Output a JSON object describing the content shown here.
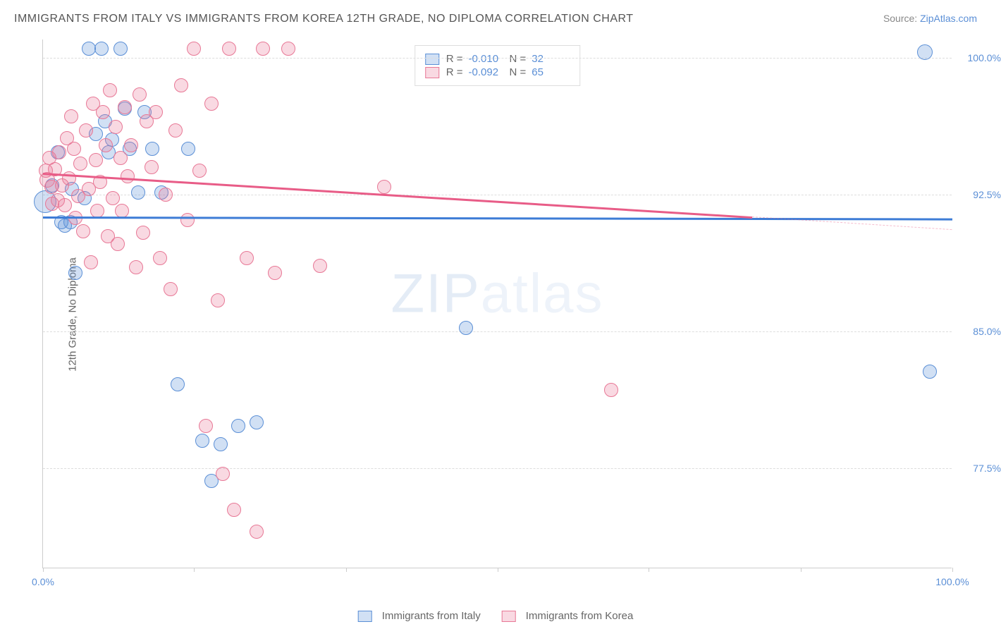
{
  "title": "IMMIGRANTS FROM ITALY VS IMMIGRANTS FROM KOREA 12TH GRADE, NO DIPLOMA CORRELATION CHART",
  "source_prefix": "Source: ",
  "source_name": "ZipAtlas.com",
  "ylabel": "12th Grade, No Diploma",
  "watermark_bold": "ZIP",
  "watermark_thin": "atlas",
  "chart": {
    "type": "scatter",
    "xlim": [
      0,
      100
    ],
    "ylim": [
      72,
      101
    ],
    "xtick_positions": [
      0,
      16.6,
      33.3,
      50,
      66.6,
      83.3,
      100
    ],
    "xtick_labels": [
      "0.0%",
      "",
      "",
      "",
      "",
      "",
      "100.0%"
    ],
    "ytick_positions": [
      77.5,
      85.0,
      92.5,
      100.0
    ],
    "ytick_labels": [
      "77.5%",
      "85.0%",
      "92.5%",
      "100.0%"
    ],
    "grid_color": "#dddddd",
    "background_color": "#ffffff",
    "axis_color": "#cccccc",
    "tick_label_color": "#5b8fd6",
    "axis_label_color": "#666666",
    "label_fontsize": 15,
    "tick_fontsize": 14
  },
  "series": [
    {
      "name": "Immigrants from Italy",
      "fill_color": "rgba(91,143,214,0.28)",
      "stroke_color": "#5b8fd6",
      "marker_radius": 10,
      "trend": {
        "x1": 0,
        "y1": 91.3,
        "x2": 100,
        "y2": 91.2,
        "dash_from_x": 100,
        "color": "#3d7cd6",
        "width": 2.5
      },
      "R": "-0.010",
      "N": "32",
      "points": [
        [
          0.2,
          92.1,
          16
        ],
        [
          1.0,
          93.0,
          10
        ],
        [
          1.6,
          94.8,
          10
        ],
        [
          2.0,
          91.0,
          10
        ],
        [
          2.4,
          90.8,
          10
        ],
        [
          3.2,
          92.8,
          10
        ],
        [
          3.0,
          91.0,
          10
        ],
        [
          3.6,
          88.2,
          10
        ],
        [
          4.6,
          92.3,
          10
        ],
        [
          5.0,
          100.5,
          10
        ],
        [
          5.8,
          95.8,
          10
        ],
        [
          6.4,
          100.5,
          10
        ],
        [
          6.8,
          96.5,
          10
        ],
        [
          7.2,
          94.8,
          10
        ],
        [
          7.6,
          95.5,
          10
        ],
        [
          8.5,
          100.5,
          10
        ],
        [
          9.0,
          97.2,
          10
        ],
        [
          9.5,
          95.0,
          10
        ],
        [
          10.5,
          92.6,
          10
        ],
        [
          11.2,
          97.0,
          10
        ],
        [
          12.0,
          95.0,
          10
        ],
        [
          13.0,
          92.6,
          10
        ],
        [
          14.8,
          82.1,
          10
        ],
        [
          16.0,
          95.0,
          10
        ],
        [
          17.5,
          79.0,
          10
        ],
        [
          18.5,
          76.8,
          10
        ],
        [
          19.5,
          78.8,
          10
        ],
        [
          21.5,
          79.8,
          10
        ],
        [
          23.5,
          80.0,
          10
        ],
        [
          46.5,
          85.2,
          10
        ],
        [
          97.0,
          100.3,
          11
        ],
        [
          97.5,
          82.8,
          10
        ]
      ]
    },
    {
      "name": "Immigrants from Korea",
      "fill_color": "rgba(232,120,150,0.28)",
      "stroke_color": "#e87896",
      "marker_radius": 10,
      "trend": {
        "x1": 0,
        "y1": 93.7,
        "x2": 78,
        "y2": 91.3,
        "dash_from_x": 78,
        "dash_x2": 100,
        "dash_y2": 90.6,
        "color": "#e85c87",
        "width": 2.5
      },
      "R": "-0.092",
      "N": "65",
      "points": [
        [
          0.3,
          93.8,
          10
        ],
        [
          0.5,
          93.3,
          11
        ],
        [
          0.7,
          94.5,
          10
        ],
        [
          0.9,
          92.9,
          10
        ],
        [
          1.0,
          92.0,
          10
        ],
        [
          1.3,
          93.9,
          10
        ],
        [
          1.6,
          92.2,
          10
        ],
        [
          1.8,
          94.8,
          10
        ],
        [
          2.1,
          93.0,
          10
        ],
        [
          2.4,
          91.9,
          10
        ],
        [
          2.6,
          95.6,
          10
        ],
        [
          2.9,
          93.4,
          10
        ],
        [
          3.1,
          96.8,
          10
        ],
        [
          3.4,
          95.0,
          10
        ],
        [
          3.6,
          91.2,
          10
        ],
        [
          3.9,
          92.4,
          10
        ],
        [
          4.1,
          94.2,
          10
        ],
        [
          4.4,
          90.5,
          10
        ],
        [
          4.7,
          96.0,
          10
        ],
        [
          5.0,
          92.8,
          10
        ],
        [
          5.3,
          88.8,
          10
        ],
        [
          5.5,
          97.5,
          10
        ],
        [
          5.8,
          94.4,
          10
        ],
        [
          6.0,
          91.6,
          10
        ],
        [
          6.3,
          93.2,
          10
        ],
        [
          6.6,
          97.0,
          10
        ],
        [
          6.9,
          95.2,
          10
        ],
        [
          7.1,
          90.2,
          10
        ],
        [
          7.4,
          98.2,
          10
        ],
        [
          7.7,
          92.3,
          10
        ],
        [
          8.0,
          96.2,
          10
        ],
        [
          8.2,
          89.8,
          10
        ],
        [
          8.5,
          94.5,
          10
        ],
        [
          8.7,
          91.6,
          10
        ],
        [
          9.0,
          97.3,
          10
        ],
        [
          9.3,
          93.5,
          10
        ],
        [
          9.7,
          95.2,
          10
        ],
        [
          10.2,
          88.5,
          10
        ],
        [
          10.6,
          98.0,
          10
        ],
        [
          11.0,
          90.4,
          10
        ],
        [
          11.4,
          96.5,
          10
        ],
        [
          11.9,
          94.0,
          10
        ],
        [
          12.4,
          97.0,
          10
        ],
        [
          12.9,
          89.0,
          10
        ],
        [
          13.5,
          92.5,
          10
        ],
        [
          14.0,
          87.3,
          10
        ],
        [
          14.6,
          96.0,
          10
        ],
        [
          15.2,
          98.5,
          10
        ],
        [
          15.9,
          91.1,
          10
        ],
        [
          16.6,
          100.5,
          10
        ],
        [
          17.2,
          93.8,
          10
        ],
        [
          17.9,
          79.8,
          10
        ],
        [
          18.5,
          97.5,
          10
        ],
        [
          19.2,
          86.7,
          10
        ],
        [
          19.8,
          77.2,
          10
        ],
        [
          20.5,
          100.5,
          10
        ],
        [
          21.0,
          75.2,
          10
        ],
        [
          22.4,
          89.0,
          10
        ],
        [
          23.5,
          74.0,
          10
        ],
        [
          24.2,
          100.5,
          10
        ],
        [
          25.5,
          88.2,
          10
        ],
        [
          27.0,
          100.5,
          10
        ],
        [
          30.5,
          88.6,
          10
        ],
        [
          37.5,
          92.9,
          10
        ],
        [
          62.5,
          81.8,
          10
        ]
      ]
    }
  ],
  "legend": {
    "R_label": "R =",
    "N_label": "N ="
  },
  "bottom_legend": [
    {
      "label": "Immigrants from Italy",
      "fill": "rgba(91,143,214,0.28)",
      "stroke": "#5b8fd6"
    },
    {
      "label": "Immigrants from Korea",
      "fill": "rgba(232,120,150,0.28)",
      "stroke": "#e87896"
    }
  ]
}
